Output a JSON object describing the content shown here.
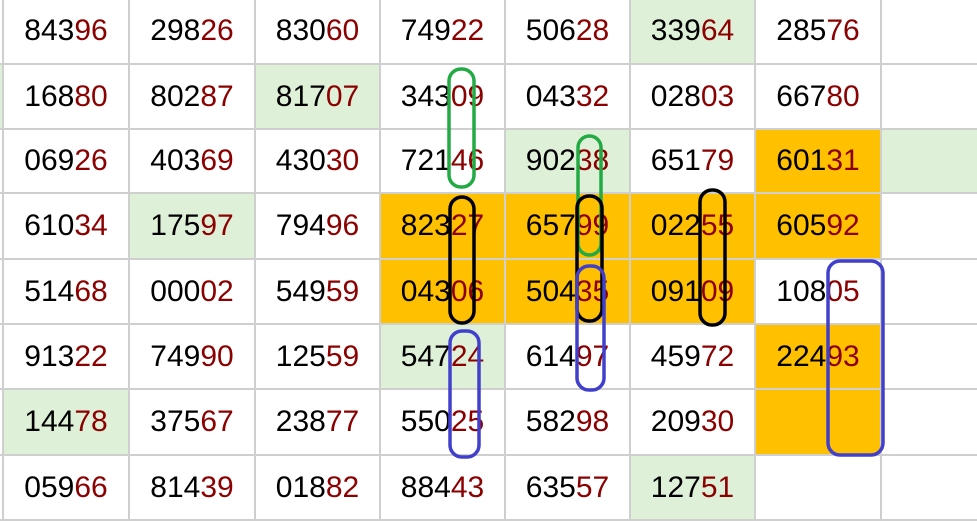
{
  "colors": {
    "green": "#dff0d8",
    "orange": "#ffc000",
    "digits_head": "#000000",
    "digits_tail": "#8b0000"
  },
  "left_strip_fills": [
    "",
    "green",
    "",
    "",
    "",
    "",
    "",
    ""
  ],
  "rows": [
    [
      {
        "head": "843",
        "tail": "96"
      },
      {
        "head": "298",
        "tail": "26"
      },
      {
        "head": "830",
        "tail": "60"
      },
      {
        "head": "749",
        "tail": "22"
      },
      {
        "head": "506",
        "tail": "28"
      },
      {
        "head": "339",
        "tail": "64",
        "fill": "green"
      },
      {
        "head": "285",
        "tail": "76"
      },
      {
        "head": "",
        "tail": ""
      }
    ],
    [
      {
        "head": "168",
        "tail": "80"
      },
      {
        "head": "802",
        "tail": "87"
      },
      {
        "head": "817",
        "tail": "07",
        "fill": "green"
      },
      {
        "head": "343",
        "tail": "09"
      },
      {
        "head": "043",
        "tail": "32"
      },
      {
        "head": "028",
        "tail": "03"
      },
      {
        "head": "667",
        "tail": "80"
      },
      {
        "head": "",
        "tail": ""
      }
    ],
    [
      {
        "head": "069",
        "tail": "26"
      },
      {
        "head": "403",
        "tail": "69"
      },
      {
        "head": "430",
        "tail": "30"
      },
      {
        "head": "721",
        "tail": "46"
      },
      {
        "head": "902",
        "tail": "38",
        "fill": "green"
      },
      {
        "head": "651",
        "tail": "79"
      },
      {
        "head": "601",
        "tail": "31",
        "fill": "orange"
      },
      {
        "head": "",
        "tail": "",
        "fill": "green"
      }
    ],
    [
      {
        "head": "610",
        "tail": "34"
      },
      {
        "head": "175",
        "tail": "97",
        "fill": "green"
      },
      {
        "head": "794",
        "tail": "96"
      },
      {
        "head": "823",
        "tail": "27",
        "fill": "orange"
      },
      {
        "head": "657",
        "tail": "99",
        "fill": "orange"
      },
      {
        "head": "022",
        "tail": "55",
        "fill": "orange"
      },
      {
        "head": "605",
        "tail": "92",
        "fill": "orange"
      },
      {
        "head": "",
        "tail": ""
      }
    ],
    [
      {
        "head": "514",
        "tail": "68"
      },
      {
        "head": "000",
        "tail": "02"
      },
      {
        "head": "549",
        "tail": "59"
      },
      {
        "head": "043",
        "tail": "06",
        "fill": "orange"
      },
      {
        "head": "504",
        "tail": "35",
        "fill": "orange"
      },
      {
        "head": "091",
        "tail": "09",
        "fill": "orange"
      },
      {
        "head": "108",
        "tail": "05"
      },
      {
        "head": "",
        "tail": ""
      }
    ],
    [
      {
        "head": "913",
        "tail": "22"
      },
      {
        "head": "749",
        "tail": "90"
      },
      {
        "head": "125",
        "tail": "59"
      },
      {
        "head": "547",
        "tail": "24",
        "fill": "green"
      },
      {
        "head": "614",
        "tail": "97"
      },
      {
        "head": "459",
        "tail": "72"
      },
      {
        "head": "224",
        "tail": "93",
        "fill": "orange"
      },
      {
        "head": "",
        "tail": ""
      }
    ],
    [
      {
        "head": "144",
        "tail": "78",
        "fill": "green"
      },
      {
        "head": "375",
        "tail": "67"
      },
      {
        "head": "238",
        "tail": "77"
      },
      {
        "head": "550",
        "tail": "25"
      },
      {
        "head": "582",
        "tail": "98"
      },
      {
        "head": "209",
        "tail": "30"
      },
      {
        "head": "",
        "tail": "",
        "fill": "orange"
      },
      {
        "head": "",
        "tail": ""
      }
    ],
    [
      {
        "head": "059",
        "tail": "66"
      },
      {
        "head": "814",
        "tail": "39"
      },
      {
        "head": "018",
        "tail": "82"
      },
      {
        "head": "884",
        "tail": "43"
      },
      {
        "head": "635",
        "tail": "57"
      },
      {
        "head": "127",
        "tail": "51",
        "fill": "green"
      },
      {
        "head": "",
        "tail": ""
      },
      {
        "head": "",
        "tail": ""
      }
    ]
  ],
  "annotations": [
    {
      "color": "#22aa44",
      "label": "green-oval"
    },
    {
      "color": "#22aa44",
      "label": "green-oval"
    },
    {
      "color": "#000000",
      "label": "black-oval"
    },
    {
      "color": "#000000",
      "label": "black-oval"
    },
    {
      "color": "#000000",
      "label": "black-oval"
    },
    {
      "color": "#4040cc",
      "label": "blue-oval"
    },
    {
      "color": "#4040cc",
      "label": "blue-oval"
    },
    {
      "color": "#4040cc",
      "label": "blue-oval"
    }
  ]
}
